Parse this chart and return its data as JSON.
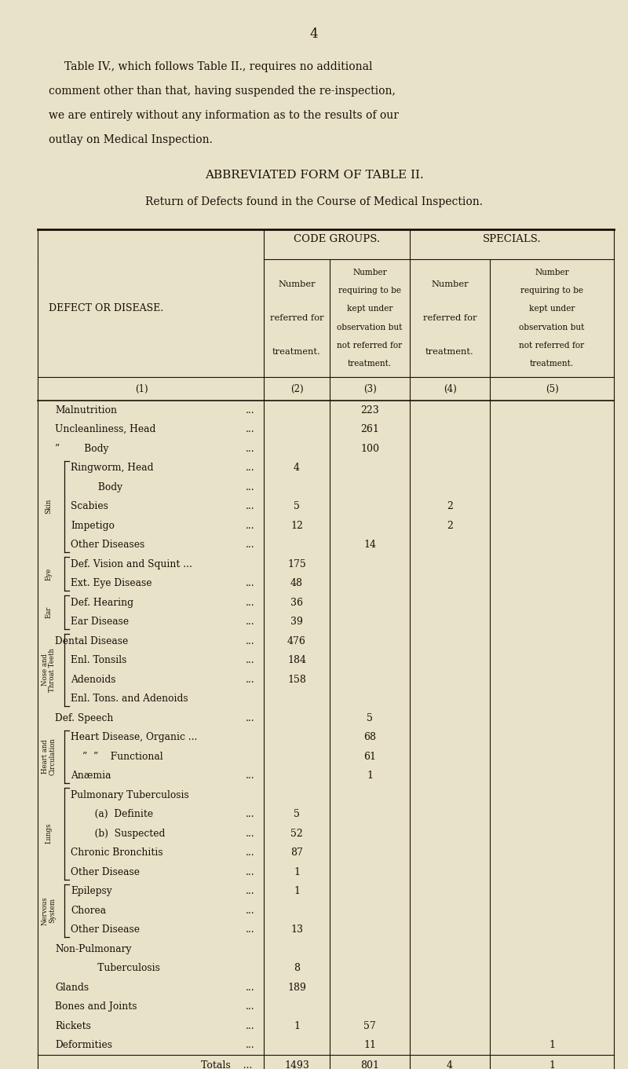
{
  "page_number": "4",
  "intro_text": [
    "Table IV., which follows Table II., requires no additional",
    "comment other than that, having suspended the re-inspection,",
    "we are entirely without any information as to the results of our",
    "outlay on Medical Inspection."
  ],
  "title1": "ABBREVIATED FORM OF TABLE II.",
  "title2": "Return of Defects found in the Course of Medical Inspection.",
  "defect_col_header": "DEFECT OR DISEASE.",
  "col_group1": "CODE GROUPS.",
  "col_group2": "SPECIALS.",
  "col2_header": [
    "Number",
    "referred for",
    "treatment."
  ],
  "col3_header": [
    "Number",
    "requiring to be",
    "kept under",
    "observation but",
    "not referred for",
    "treatment."
  ],
  "col4_header": [
    "Number",
    "referred for",
    "treatment."
  ],
  "col5_header": [
    "Number",
    "requiring to be",
    "kept under",
    "observation but",
    "not referred for",
    "treatment."
  ],
  "rows": [
    {
      "name": "Malnutrition",
      "dots": true,
      "indent": 0,
      "col2": "",
      "col3": "223",
      "col4": "",
      "col5": ""
    },
    {
      "name": "Uncleanliness, Head",
      "dots": true,
      "indent": 0,
      "col2": "",
      "col3": "261",
      "col4": "",
      "col5": ""
    },
    {
      "name": "”        Body",
      "dots": true,
      "indent": 0,
      "col2": "",
      "col3": "100",
      "col4": "",
      "col5": ""
    },
    {
      "name": "Ringworm, Head",
      "dots": true,
      "indent": 1,
      "col2": "4",
      "col3": "",
      "col4": "",
      "col5": ""
    },
    {
      "name": "         Body",
      "dots": true,
      "indent": 1,
      "col2": "",
      "col3": "",
      "col4": "",
      "col5": ""
    },
    {
      "name": "Scabies",
      "dots": true,
      "indent": 1,
      "col2": "5",
      "col3": "",
      "col4": "2",
      "col5": ""
    },
    {
      "name": "Impetigo",
      "dots": true,
      "indent": 1,
      "col2": "12",
      "col3": "",
      "col4": "2",
      "col5": ""
    },
    {
      "name": "Other Diseases",
      "dots": true,
      "indent": 1,
      "col2": "",
      "col3": "14",
      "col4": "",
      "col5": ""
    },
    {
      "name": "Def. Vision and Squint ...",
      "dots": false,
      "indent": 1,
      "col2": "175",
      "col3": "",
      "col4": "",
      "col5": ""
    },
    {
      "name": "Ext. Eye Disease",
      "dots": true,
      "indent": 1,
      "col2": "48",
      "col3": "",
      "col4": "",
      "col5": ""
    },
    {
      "name": "Def. Hearing",
      "dots": true,
      "indent": 1,
      "col2": "36",
      "col3": "",
      "col4": "",
      "col5": ""
    },
    {
      "name": "Ear Disease",
      "dots": true,
      "indent": 1,
      "col2": "39",
      "col3": "",
      "col4": "",
      "col5": ""
    },
    {
      "name": "Dental Disease",
      "dots": true,
      "indent": 0,
      "col2": "476",
      "col3": "",
      "col4": "",
      "col5": ""
    },
    {
      "name": "Enl. Tonsils",
      "dots": true,
      "indent": 1,
      "col2": "184",
      "col3": "",
      "col4": "",
      "col5": ""
    },
    {
      "name": "Adenoids",
      "dots": true,
      "indent": 1,
      "col2": "158",
      "col3": "",
      "col4": "",
      "col5": ""
    },
    {
      "name": "Enl. Tons. and Adenoids",
      "dots": false,
      "indent": 1,
      "col2": "",
      "col3": "",
      "col4": "",
      "col5": ""
    },
    {
      "name": "Def. Speech",
      "dots": true,
      "indent": 0,
      "col2": "",
      "col3": "5",
      "col4": "",
      "col5": ""
    },
    {
      "name": "Heart Disease, Organic ...",
      "dots": false,
      "indent": 1,
      "col2": "",
      "col3": "68",
      "col4": "",
      "col5": ""
    },
    {
      "name": "”  ”    Functional",
      "dots": false,
      "indent": 2,
      "col2": "",
      "col3": "61",
      "col4": "",
      "col5": ""
    },
    {
      "name": "Anæmia",
      "dots": true,
      "indent": 1,
      "col2": "",
      "col3": "1",
      "col4": "",
      "col5": ""
    },
    {
      "name": "Pulmonary Tuberculosis",
      "dots": false,
      "indent": 1,
      "col2": "",
      "col3": "",
      "col4": "",
      "col5": ""
    },
    {
      "name": "    (a)  Definite",
      "dots": true,
      "indent": 2,
      "col2": "5",
      "col3": "",
      "col4": "",
      "col5": ""
    },
    {
      "name": "    (b)  Suspected",
      "dots": true,
      "indent": 2,
      "col2": "52",
      "col3": "",
      "col4": "",
      "col5": ""
    },
    {
      "name": "Chronic Bronchitis",
      "dots": true,
      "indent": 1,
      "col2": "87",
      "col3": "",
      "col4": "",
      "col5": ""
    },
    {
      "name": "Other Disease",
      "dots": true,
      "indent": 1,
      "col2": "1",
      "col3": "",
      "col4": "",
      "col5": ""
    },
    {
      "name": "Epilepsy",
      "dots": true,
      "indent": 1,
      "col2": "1",
      "col3": "",
      "col4": "",
      "col5": ""
    },
    {
      "name": "Chorea",
      "dots": true,
      "indent": 1,
      "col2": "",
      "col3": "",
      "col4": "",
      "col5": ""
    },
    {
      "name": "Other Disease",
      "dots": true,
      "indent": 1,
      "col2": "13",
      "col3": "",
      "col4": "",
      "col5": ""
    },
    {
      "name": "Non-Pulmonary",
      "dots": false,
      "indent": 0,
      "col2": "",
      "col3": "",
      "col4": "",
      "col5": ""
    },
    {
      "name": "              Tuberculosis",
      "dots": false,
      "indent": 0,
      "col2": "8",
      "col3": "",
      "col4": "",
      "col5": ""
    },
    {
      "name": "Glands",
      "dots": true,
      "indent": 0,
      "col2": "189",
      "col3": "",
      "col4": "",
      "col5": ""
    },
    {
      "name": "Bones and Joints",
      "dots": true,
      "indent": 0,
      "col2": "",
      "col3": "",
      "col4": "",
      "col5": ""
    },
    {
      "name": "Rickets",
      "dots": true,
      "indent": 0,
      "col2": "1",
      "col3": "57",
      "col4": "",
      "col5": ""
    },
    {
      "name": "Deformities",
      "dots": true,
      "indent": 0,
      "col2": "",
      "col3": "11",
      "col4": "",
      "col5": "1"
    }
  ],
  "totals": {
    "col2": "1493",
    "col3": "801",
    "col4": "4",
    "col5": "1"
  },
  "brackets": [
    {
      "rows": [
        3,
        7
      ],
      "label": "Skin"
    },
    {
      "rows": [
        8,
        9
      ],
      "label": "Eye"
    },
    {
      "rows": [
        10,
        11
      ],
      "label": "Ear"
    },
    {
      "rows": [
        12,
        15
      ],
      "label": "Nose and\nThroat Teeth"
    },
    {
      "rows": [
        17,
        19
      ],
      "label": "Heart and\nCirculation"
    },
    {
      "rows": [
        20,
        24
      ],
      "label": "Lungs"
    },
    {
      "rows": [
        25,
        27
      ],
      "label": "Nervous\nSystem"
    }
  ],
  "bg_color": "#e8e2c8",
  "text_color": "#1a1008"
}
